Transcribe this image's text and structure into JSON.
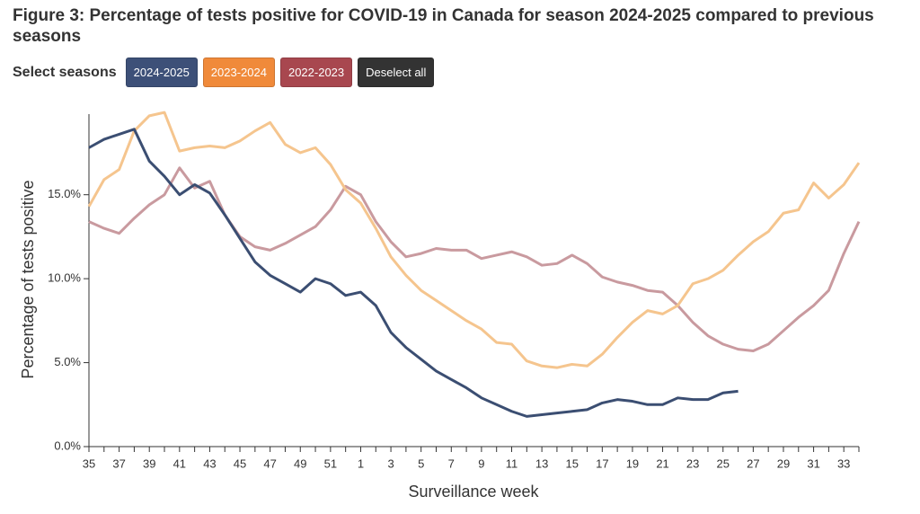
{
  "chart_data": {
    "type": "line",
    "title": "Figure 3: Percentage of tests positive for COVID-19 in Canada for season 2024-2025 compared to previous seasons",
    "select_label": "Select seasons",
    "deselect_label": "Deselect all",
    "y_label": "Percentage of tests positive",
    "x_label": "Surveillance week",
    "categories": [
      "35",
      null,
      "37",
      null,
      "39",
      null,
      "41",
      null,
      "43",
      null,
      "45",
      null,
      "47",
      null,
      "49",
      null,
      "51",
      null,
      "1",
      null,
      "3",
      null,
      "5",
      null,
      "7",
      null,
      "9",
      null,
      "11",
      null,
      "13",
      null,
      "15",
      null,
      "17",
      null,
      "19",
      null,
      "21",
      null,
      "23",
      null,
      "25",
      null,
      "27",
      null,
      "29",
      null,
      "31",
      null,
      "33",
      null
    ],
    "ylim": [
      0,
      19.8
    ],
    "yticks": [
      {
        "value": 0,
        "label": "0.0%"
      },
      {
        "value": 5,
        "label": "5.0%"
      },
      {
        "value": 10,
        "label": "10.0%"
      },
      {
        "value": 15,
        "label": "15.0%"
      }
    ],
    "series": [
      {
        "name": "2022-2023",
        "color": "#c99a9f",
        "button_color": "#a8474f",
        "values": [
          13.4,
          13.0,
          12.7,
          13.6,
          14.4,
          15.0,
          16.6,
          15.4,
          15.8,
          13.8,
          12.5,
          11.9,
          11.7,
          12.1,
          12.6,
          13.1,
          14.1,
          15.5,
          15.0,
          13.4,
          12.2,
          11.3,
          11.5,
          11.8,
          11.7,
          11.7,
          11.2,
          11.4,
          11.6,
          11.3,
          10.8,
          10.9,
          11.4,
          10.9,
          10.1,
          9.8,
          9.6,
          9.3,
          9.2,
          8.4,
          7.4,
          6.6,
          6.1,
          5.8,
          5.7,
          6.1,
          6.9,
          7.7,
          8.4,
          9.3,
          11.5,
          13.4
        ]
      },
      {
        "name": "2023-2024",
        "color": "#f5c58e",
        "button_color": "#f08a3a",
        "values": [
          14.3,
          15.9,
          16.5,
          18.8,
          19.7,
          19.9,
          17.6,
          17.8,
          17.9,
          17.8,
          18.2,
          18.8,
          19.3,
          18.0,
          17.5,
          17.8,
          16.8,
          15.3,
          14.5,
          13.0,
          11.3,
          10.2,
          9.3,
          8.7,
          8.1,
          7.5,
          7.0,
          6.2,
          6.1,
          5.1,
          4.8,
          4.7,
          4.9,
          4.8,
          5.5,
          6.5,
          7.4,
          8.1,
          7.9,
          8.4,
          9.7,
          10.0,
          10.5,
          11.4,
          12.2,
          12.8,
          13.9,
          14.1,
          15.7,
          14.8,
          15.6,
          16.9
        ]
      },
      {
        "name": "2024-2025",
        "color": "#3b4e72",
        "button_color": "#3d5078",
        "values": [
          17.8,
          18.3,
          18.6,
          18.9,
          17.0,
          16.1,
          15.0,
          15.6,
          15.1,
          13.8,
          12.4,
          11.0,
          10.2,
          9.7,
          9.2,
          10.0,
          9.7,
          9.0,
          9.2,
          8.4,
          6.8,
          5.9,
          5.2,
          4.5,
          4.0,
          3.5,
          2.9,
          2.5,
          2.1,
          1.8,
          1.9,
          2.0,
          2.1,
          2.2,
          2.6,
          2.8,
          2.7,
          2.5,
          2.5,
          2.9,
          2.8,
          2.8,
          3.2,
          3.3,
          null,
          null,
          null,
          null,
          null,
          null,
          null,
          null
        ]
      }
    ],
    "button_order": [
      "2024-2025",
      "2023-2024",
      "2022-2023"
    ],
    "deselect_color": "#333333"
  }
}
